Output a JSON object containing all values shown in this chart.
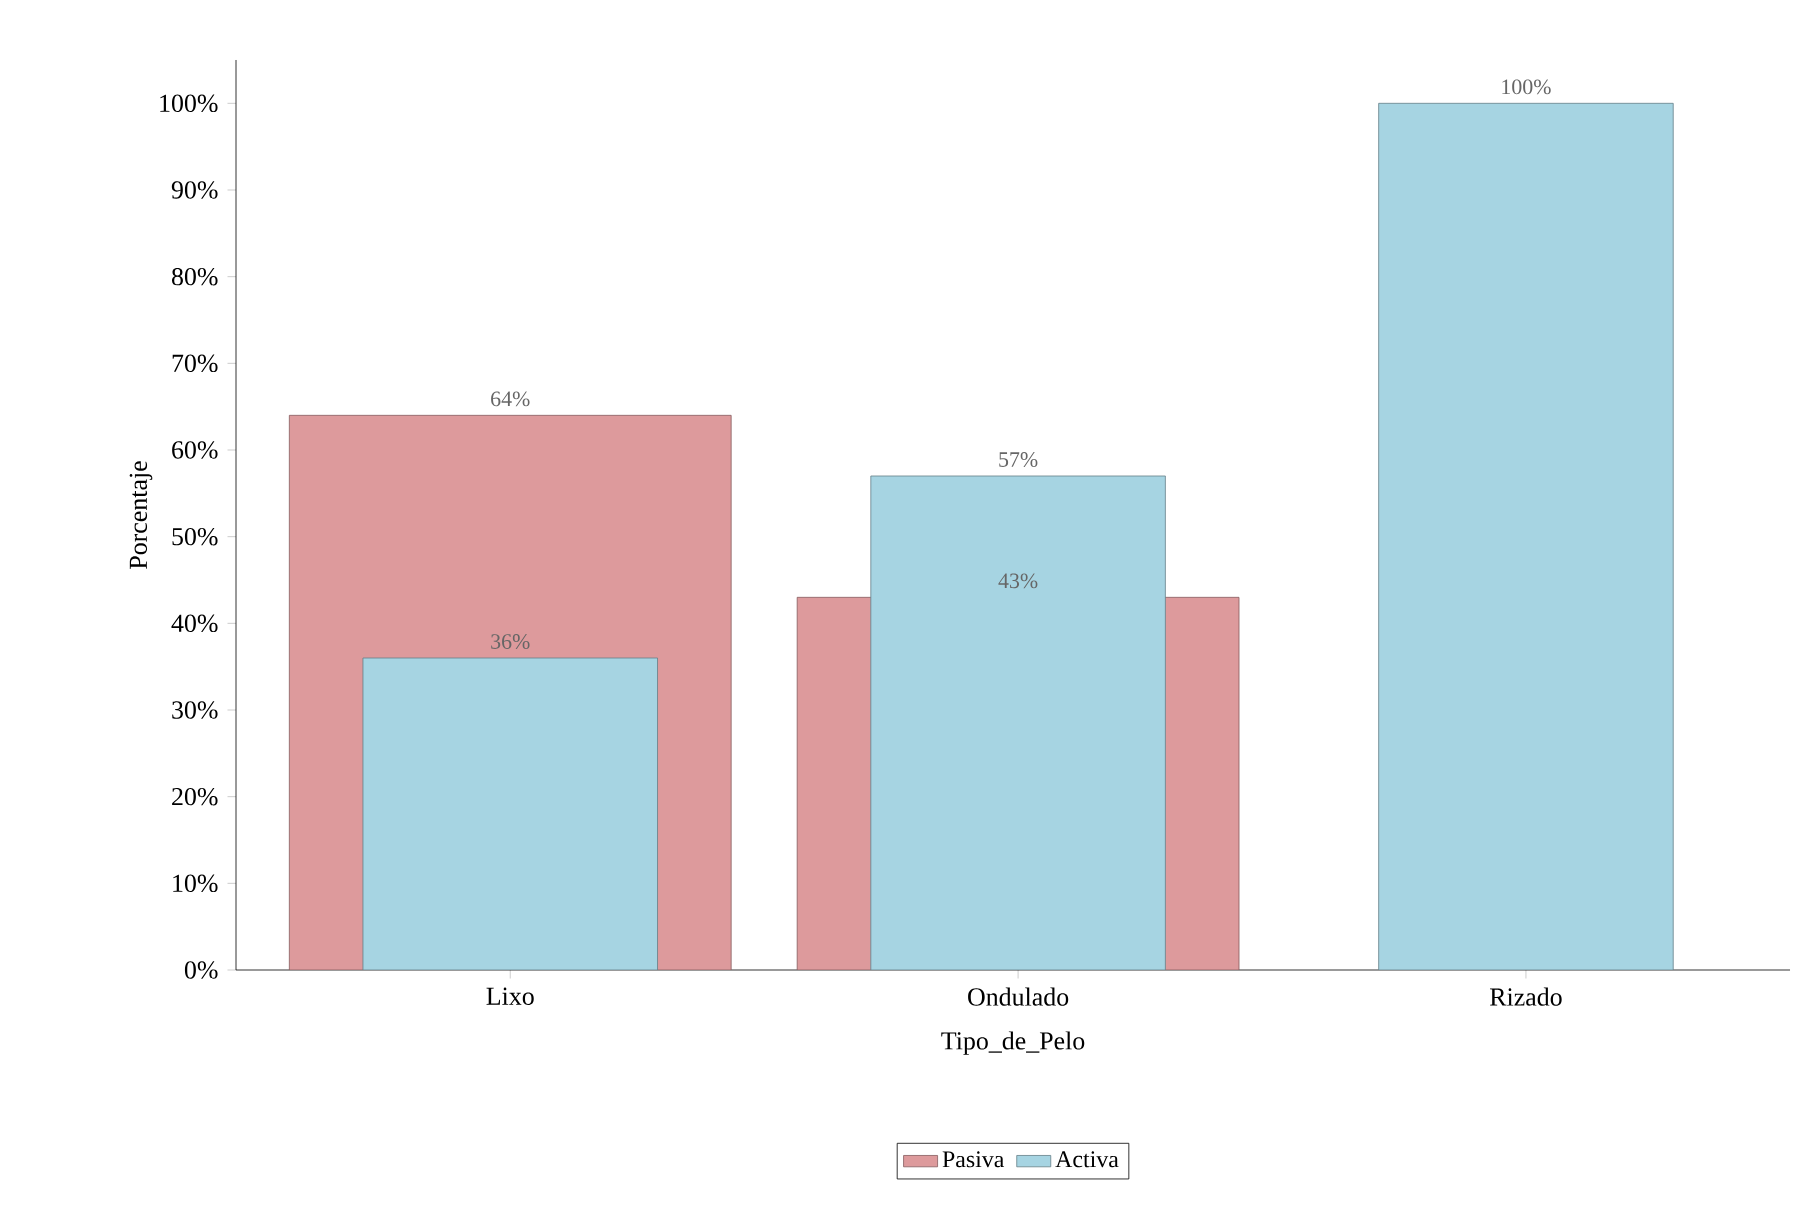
{
  "chart_data": {
    "type": "bar",
    "xlabel": "Tipo_de_Pelo",
    "ylabel": "Porcentaje",
    "categories": [
      "Lixo",
      "Ondulado",
      "Rizado"
    ],
    "series": [
      {
        "name": "Pasiva",
        "color": "#dd9a9c",
        "values": [
          64,
          43,
          null
        ],
        "value_labels": [
          "64%",
          "43%",
          null
        ]
      },
      {
        "name": "Activa",
        "color": "#a6d4e2",
        "values": [
          36,
          57,
          100
        ],
        "value_labels": [
          "36%",
          "57%",
          "100%"
        ]
      }
    ],
    "ylim": [
      0,
      105
    ],
    "yticks": [
      {
        "value": 0,
        "label": "0%"
      },
      {
        "value": 10,
        "label": "10%"
      },
      {
        "value": 20,
        "label": "20%"
      },
      {
        "value": 30,
        "label": "30%"
      },
      {
        "value": 40,
        "label": "40%"
      },
      {
        "value": 50,
        "label": "50%"
      },
      {
        "value": 60,
        "label": "60%"
      },
      {
        "value": 70,
        "label": "70%"
      },
      {
        "value": 80,
        "label": "80%"
      },
      {
        "value": 90,
        "label": "90%"
      },
      {
        "value": 100,
        "label": "100%"
      }
    ],
    "legend": "bottom",
    "grid": false
  }
}
